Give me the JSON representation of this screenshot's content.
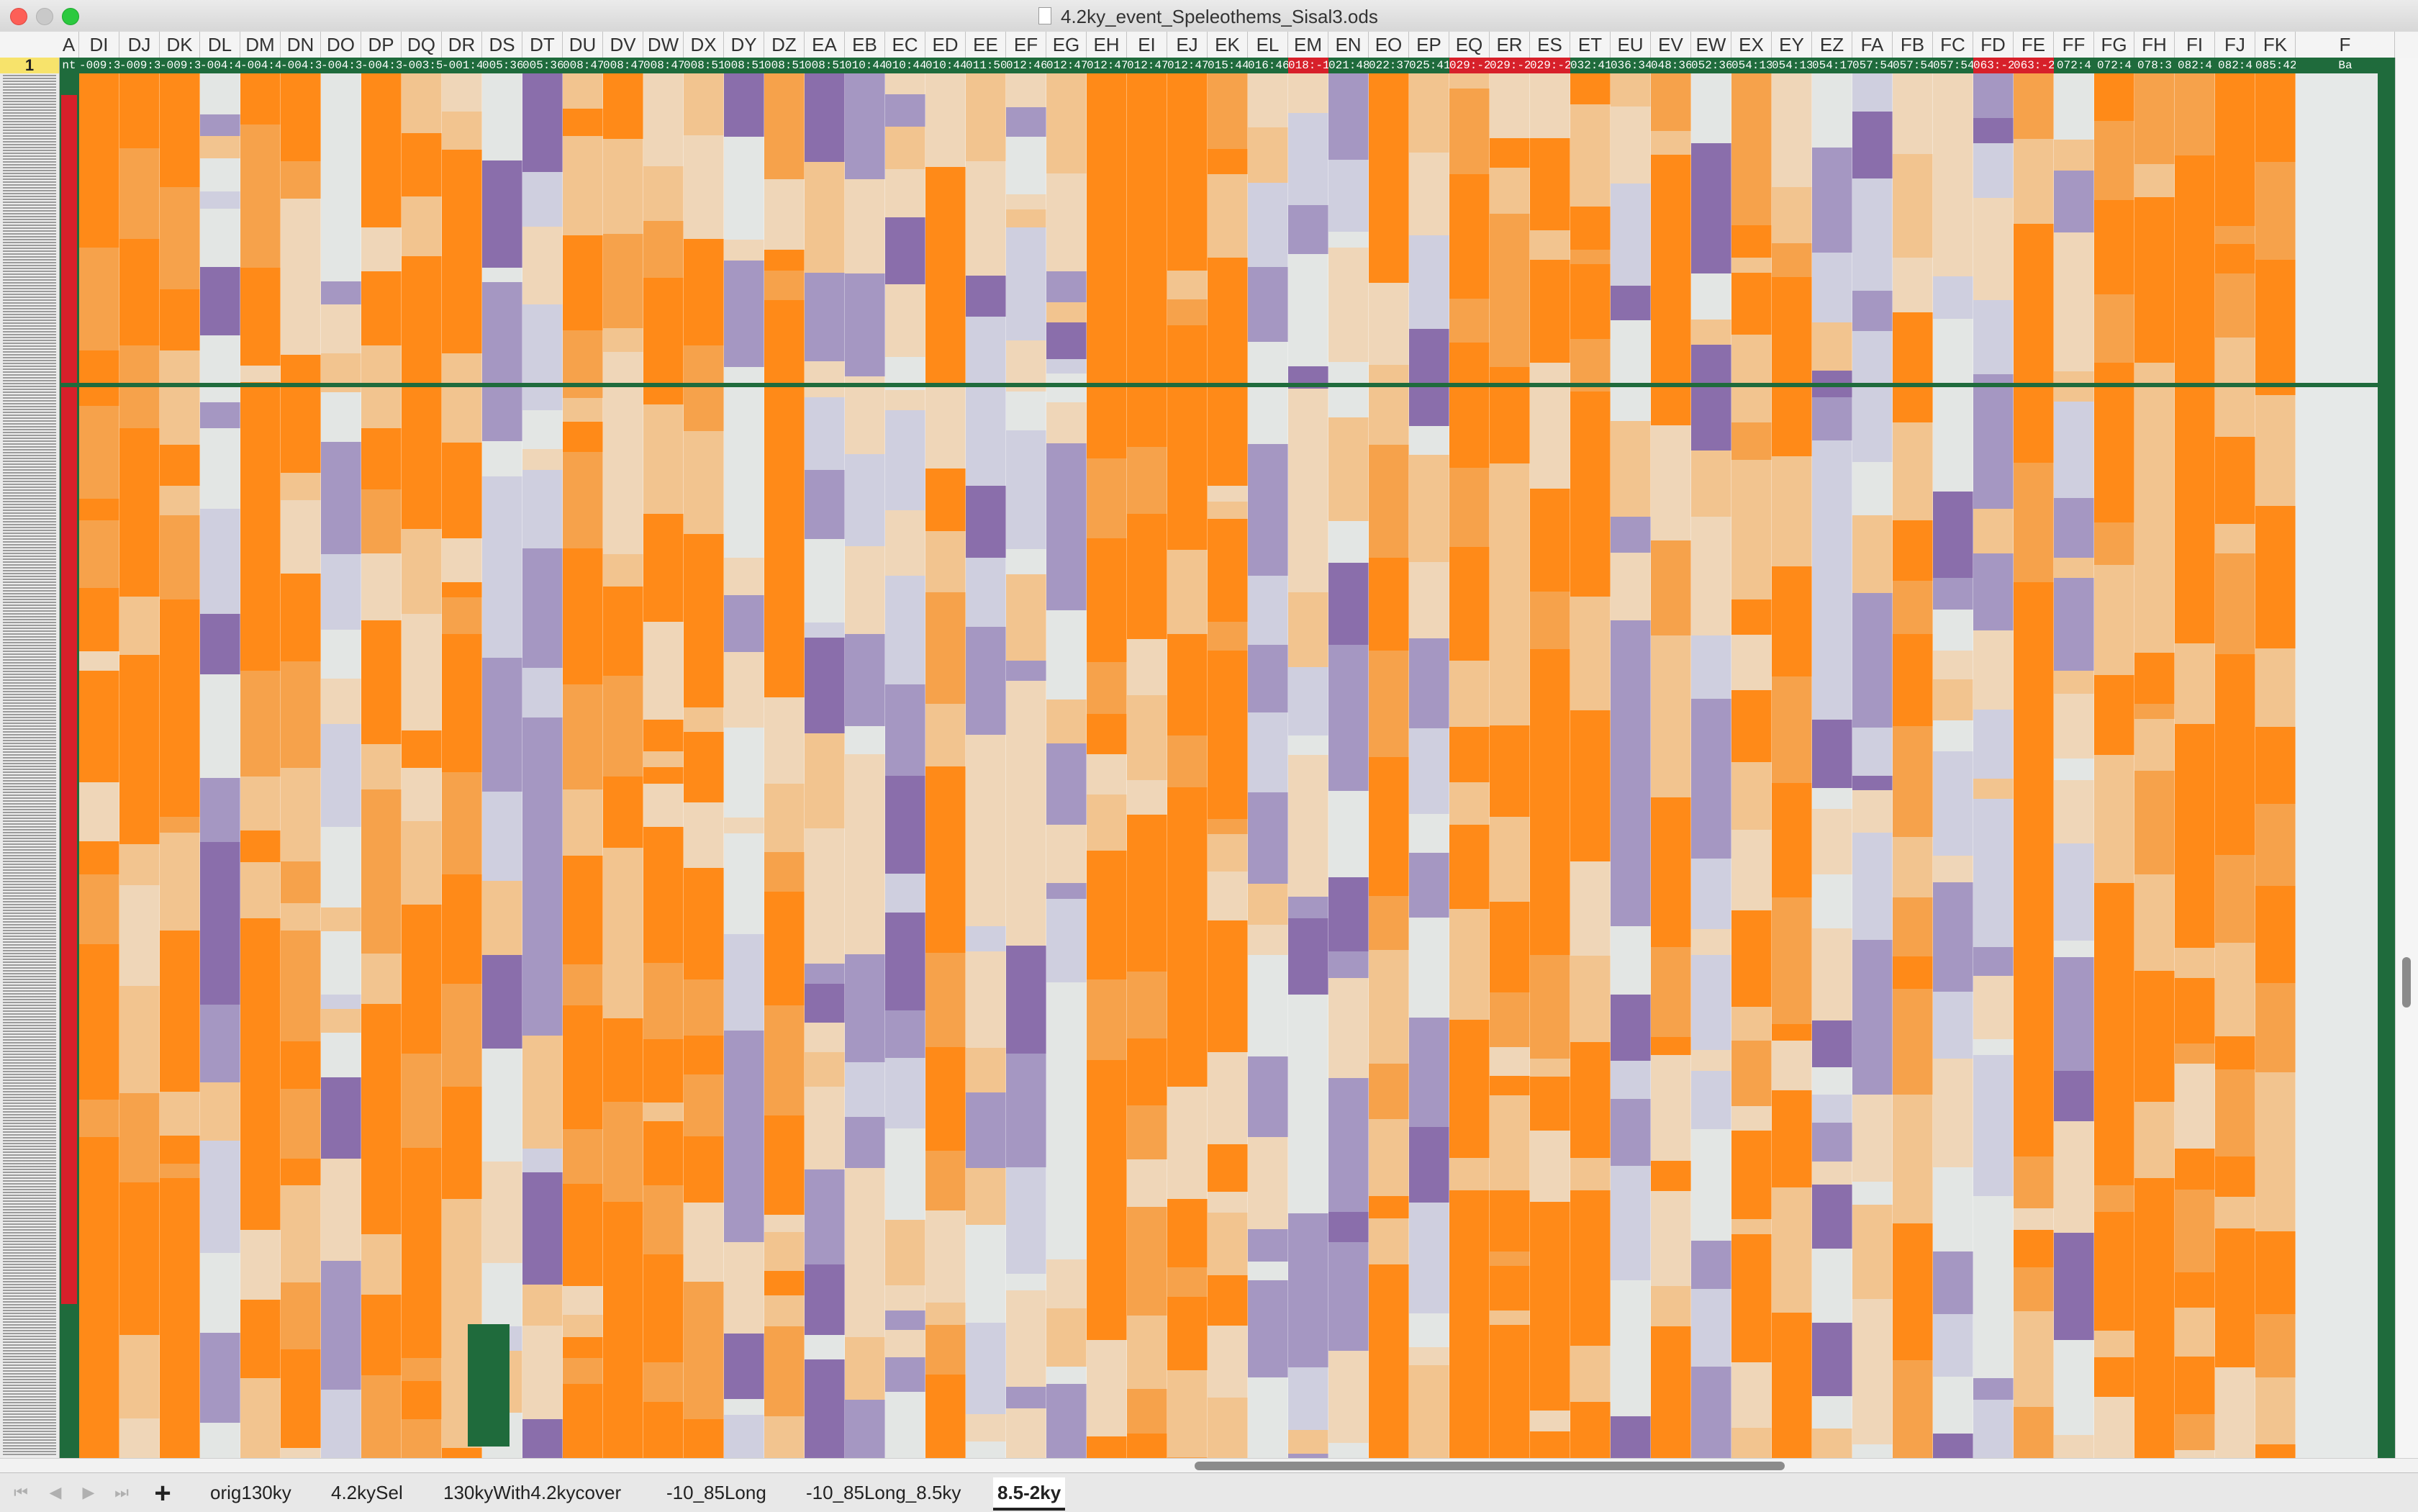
{
  "window": {
    "title": "4.2ky_event_Speleothems_Sisal3.ods"
  },
  "columns": [
    "A",
    "DI",
    "DJ",
    "DK",
    "DL",
    "DM",
    "DN",
    "DO",
    "DP",
    "DQ",
    "DR",
    "DS",
    "DT",
    "DU",
    "DV",
    "DW",
    "DX",
    "DY",
    "DZ",
    "EA",
    "EB",
    "EC",
    "ED",
    "EE",
    "EF",
    "EG",
    "EH",
    "EI",
    "EJ",
    "EK",
    "EL",
    "EM",
    "EN",
    "EO",
    "EP",
    "EQ",
    "ER",
    "ES",
    "ET",
    "EU",
    "EV",
    "EW",
    "EX",
    "EY",
    "EZ",
    "FA",
    "FB",
    "FC",
    "FD",
    "FE",
    "FF",
    "FG",
    "FH",
    "FI",
    "FJ",
    "FK",
    "F"
  ],
  "highlight_columns": [
    "EM",
    "EQ",
    "ER",
    "ES",
    "FD",
    "FE"
  ],
  "row1": {
    "number": "1",
    "cells": [
      "nt",
      "-009:3",
      "-009:3",
      "-009:3",
      "-004:4",
      "-004:4",
      "-004:3",
      "-004:3",
      "-004:3",
      "-003:5",
      "-001:4",
      "005:36",
      "005:36",
      "008:47",
      "008:47",
      "008:47",
      "008:51",
      "008:51",
      "008:51",
      "008:51",
      "010:44",
      "010:44",
      "010:44",
      "011:50",
      "012:46",
      "012:47",
      "012:47",
      "012:47",
      "012:47",
      "015:44",
      "016:46",
      "018:-1(",
      "021:48",
      "022:37",
      "025:41",
      "029:-2",
      "029:-2",
      "029:-2",
      "032:41",
      "036:34",
      "048:36",
      "052:36",
      "054:13",
      "054:13",
      "054:17",
      "057:54",
      "057:54",
      "057:54",
      "063:-2(",
      "063:-2(",
      "072:4",
      "072:4",
      "078:3",
      "082:4",
      "082:4",
      "085:42",
      "Ba"
    ]
  },
  "sheet_tabs": [
    {
      "label": "orig130ky",
      "active": false
    },
    {
      "label": "4.2kySel",
      "active": false
    },
    {
      "label": "130kyWith4.2kycover",
      "active": false
    },
    {
      "label": "-10_85Long",
      "active": false
    },
    {
      "label": "-10_85Long_8.5ky",
      "active": false
    },
    {
      "label": "8.5-2ky",
      "active": true
    }
  ],
  "colors": {
    "orange_dark": "#ff8a18",
    "orange": "#f6a24b",
    "orange_light": "#f2c48f",
    "peach": "#efd6b8",
    "neutral": "#e3e6e4",
    "lavender": "#cfcfdf",
    "purple_light": "#a597c2",
    "purple": "#8a6eab",
    "purple_dark": "#5e3a8c",
    "frame_green": "#1f6b3c",
    "flag_red": "#d7202a",
    "row_num_yellow": "#f7e36b"
  }
}
